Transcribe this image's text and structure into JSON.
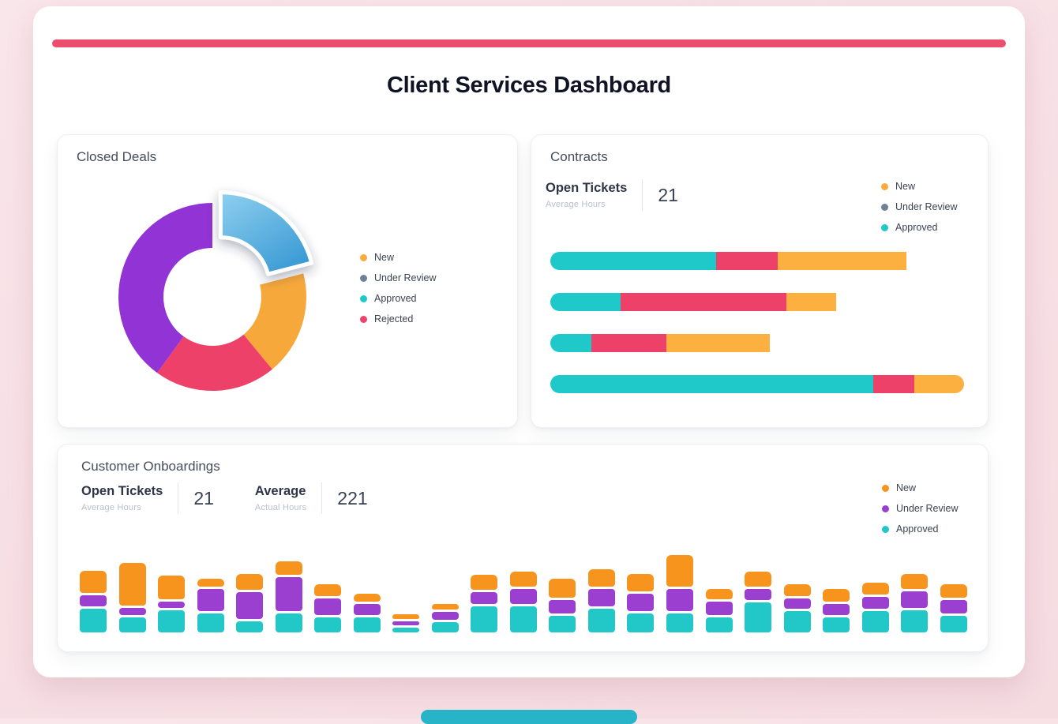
{
  "page": {
    "title": "Client Services Dashboard",
    "accent_color": "#ec4f6e",
    "bottom_accent_color": "#28b4c8"
  },
  "panels": {
    "closed_deals": {
      "title": "Closed Deals",
      "legend": [
        {
          "label": "New",
          "color": "#fbab3c"
        },
        {
          "label": "Under Review",
          "color": "#6f8198"
        },
        {
          "label": "Approved",
          "color": "#1fc9c9"
        },
        {
          "label": "Rejected",
          "color": "#f0436b"
        }
      ]
    },
    "contracts": {
      "title": "Contracts",
      "stat": {
        "label": "Open Tickets",
        "sublabel": "Average Hours",
        "value": "21"
      },
      "legend": [
        {
          "label": "New",
          "color": "#fbab3c"
        },
        {
          "label": "Under Review",
          "color": "#6f8198"
        },
        {
          "label": "Approved",
          "color": "#1fc9c9"
        }
      ]
    },
    "onboardings": {
      "title": "Customer Onboardings",
      "stats": [
        {
          "label": "Open Tickets",
          "sublabel": "Average Hours",
          "value": "21"
        },
        {
          "label": "Average",
          "sublabel": "Actual Hours",
          "value": "221"
        }
      ],
      "legend": [
        {
          "label": "New",
          "color": "#f7941e"
        },
        {
          "label": "Under Review",
          "color": "#9b3fd1"
        },
        {
          "label": "Approved",
          "color": "#22c7c7"
        }
      ]
    }
  },
  "chart_data": [
    {
      "id": "closed-deals-donut",
      "type": "pie",
      "title": "Closed Deals",
      "donut": true,
      "legend_position": "right",
      "slices": [
        {
          "label": "highlighted",
          "value": 21,
          "color": "#4aa8dd",
          "exploded": true
        },
        {
          "label": "new",
          "value": 18,
          "color": "#f6a83b"
        },
        {
          "label": "rejected",
          "value": 21,
          "color": "#ee4169"
        },
        {
          "label": "under-review",
          "value": 40,
          "color": "#9233d5"
        }
      ]
    },
    {
      "id": "contracts-stacked-bars",
      "type": "bar",
      "orientation": "horizontal",
      "stacked": true,
      "unit": "percent-of-track",
      "series_order": [
        "approved",
        "under-review",
        "new"
      ],
      "colors": {
        "approved": "#1fc9c9",
        "under-review": "#ee4169",
        "new": "#fbb040"
      },
      "rows": [
        {
          "approved": 40,
          "under-review": 15,
          "new": 31
        },
        {
          "approved": 17,
          "under-review": 40,
          "new": 12
        },
        {
          "approved": 10,
          "under-review": 18,
          "new": 25
        },
        {
          "approved": 78,
          "under-review": 10,
          "new": 12
        }
      ]
    },
    {
      "id": "onboardings-stacked-bars",
      "type": "bar",
      "orientation": "vertical",
      "stacked": true,
      "ymax": 110,
      "series": [
        {
          "name": "approved",
          "color": "#22c7c7",
          "values": [
            32,
            20,
            30,
            25,
            15,
            25,
            20,
            20,
            6,
            14,
            35,
            35,
            22,
            32,
            25,
            25,
            20,
            40,
            28,
            20,
            28,
            30,
            22
          ]
        },
        {
          "name": "under_review",
          "color": "#9b3fd1",
          "values": [
            14,
            10,
            8,
            30,
            35,
            45,
            22,
            15,
            6,
            10,
            15,
            20,
            18,
            23,
            23,
            30,
            18,
            15,
            14,
            15,
            16,
            22,
            18
          ]
        },
        {
          "name": "new",
          "color": "#f7941e",
          "values": [
            30,
            56,
            32,
            10,
            22,
            18,
            16,
            10,
            6,
            8,
            20,
            20,
            25,
            23,
            24,
            42,
            14,
            20,
            16,
            17,
            16,
            20,
            18
          ]
        }
      ]
    }
  ]
}
